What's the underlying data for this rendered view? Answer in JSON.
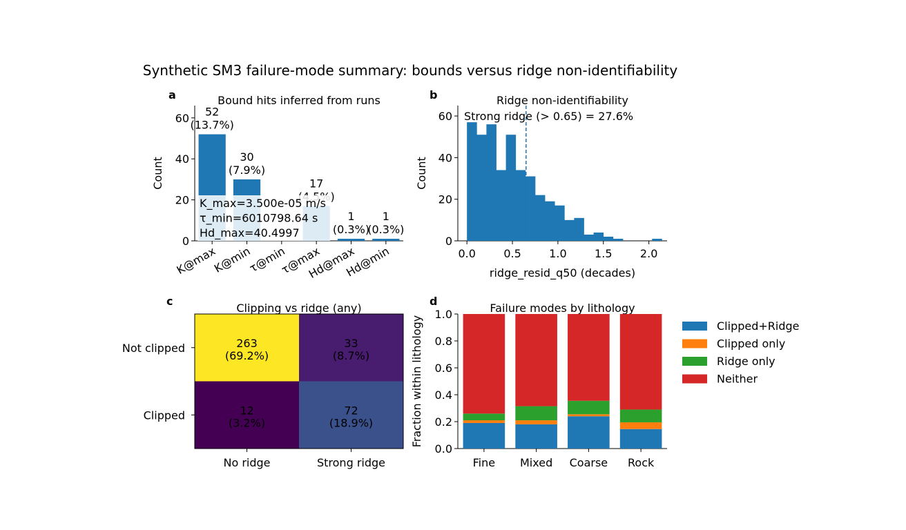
{
  "figure": {
    "suptitle": "Synthetic SM3 failure-mode summary: bounds versus ridge non-identifiability"
  },
  "chart_data": [
    {
      "panel": "a",
      "type": "bar",
      "title": "Bound hits inferred from runs",
      "xlabel": "",
      "ylabel": "Count",
      "categories": [
        "K@max",
        "K@min",
        "τ@min",
        "τ@max",
        "Hd@max",
        "Hd@min"
      ],
      "values": [
        52,
        30,
        0,
        17,
        1,
        1
      ],
      "value_labels": [
        "52\n(13.7%)",
        "30\n(7.9%)",
        "",
        "17\n(4.5%)",
        "1\n(0.3%)",
        "1\n(0.3%)"
      ],
      "ylim": [
        0,
        66
      ],
      "yticks": [
        0,
        20,
        40,
        60
      ],
      "color": "#1f77b4",
      "annotation": [
        "K_max=3.500e-05 m/s",
        "τ_min=6010798.64 s",
        "Hd_max=40.4997"
      ]
    },
    {
      "panel": "b",
      "type": "bar",
      "title": "Ridge non-identifiability",
      "xlabel": "ridge_resid_q50 (decades)",
      "ylabel": "Count",
      "bin_edges": [
        0.0,
        0.1071,
        0.2142,
        0.3213,
        0.4284,
        0.5355,
        0.6426,
        0.7497,
        0.8568,
        0.9639,
        1.071,
        1.1781,
        1.2852,
        1.3923,
        1.4994,
        1.6065,
        1.7136,
        1.8207,
        1.9278,
        2.0349,
        2.142
      ],
      "values": [
        57,
        51,
        56,
        34,
        51,
        34,
        31,
        22,
        19,
        17,
        10,
        11,
        3,
        4,
        2,
        1,
        0,
        0,
        0,
        1
      ],
      "threshold": 0.65,
      "threshold_label": "Strong ridge (> 0.65) = 27.6%",
      "xlim": [
        -0.1,
        2.2
      ],
      "xticks": [
        0.0,
        0.5,
        1.0,
        1.5,
        2.0
      ],
      "xtick_labels": [
        "0.0",
        "0.5",
        "1.0",
        "1.5",
        "2.0"
      ],
      "ylim": [
        0,
        65
      ],
      "yticks": [
        0,
        20,
        40,
        60
      ],
      "color": "#1f77b4"
    },
    {
      "panel": "c",
      "type": "heatmap",
      "title": "Clipping vs ridge (any)",
      "rows": [
        "Not clipped",
        "Clipped"
      ],
      "cols": [
        "No ridge",
        "Strong ridge"
      ],
      "values": [
        [
          263,
          33
        ],
        [
          12,
          72
        ]
      ],
      "cell_labels": [
        [
          "263\n(69.2%)",
          "33\n(8.7%)"
        ],
        [
          "12\n(3.2%)",
          "72\n(18.9%)"
        ]
      ],
      "colors": [
        [
          "#fde725",
          "#481c6e"
        ],
        [
          "#440154",
          "#3b518b"
        ]
      ]
    },
    {
      "panel": "d",
      "type": "bar",
      "stacked": true,
      "title": "Failure modes by lithology",
      "xlabel": "",
      "ylabel": "Fraction within lithology",
      "categories": [
        "Fine",
        "Mixed",
        "Coarse",
        "Rock"
      ],
      "series": [
        {
          "name": "Clipped+Ridge",
          "color": "#1f77b4",
          "values": [
            0.19,
            0.18,
            0.24,
            0.145
          ]
        },
        {
          "name": "Clipped only",
          "color": "#ff7f0e",
          "values": [
            0.02,
            0.03,
            0.015,
            0.05
          ]
        },
        {
          "name": "Ridge only",
          "color": "#2ca02c",
          "values": [
            0.05,
            0.105,
            0.1,
            0.095
          ]
        },
        {
          "name": "Neither",
          "color": "#d62728",
          "values": [
            0.74,
            0.685,
            0.645,
            0.71
          ]
        }
      ],
      "ylim": [
        0,
        1
      ],
      "yticks": [
        0.0,
        0.2,
        0.4,
        0.6,
        0.8,
        1.0
      ],
      "ytick_labels": [
        "0.0",
        "0.2",
        "0.4",
        "0.6",
        "0.8",
        "1.0"
      ],
      "legend": "right"
    }
  ]
}
